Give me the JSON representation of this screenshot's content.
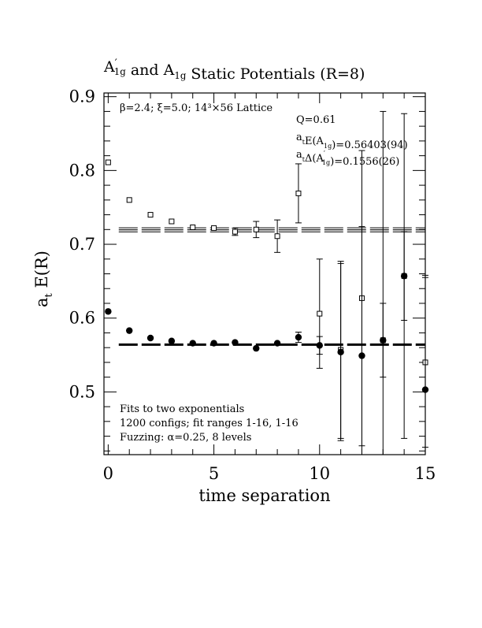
{
  "chart_data": {
    "type": "scatter",
    "title": {
      "parts": [
        {
          "t": "A",
          "sup": "′",
          "sub": "1g"
        },
        {
          "t": " and "
        },
        {
          "t": "A",
          "sub": "1g"
        },
        {
          "t": " Static Potentials (R=8)"
        }
      ]
    },
    "xlabel": "time separation",
    "ylabel": {
      "main": "a",
      "sub": "t",
      "rest": " E(R)"
    },
    "xlim": [
      -0.2,
      15
    ],
    "ylim": [
      0.415,
      0.905
    ],
    "x_major_ticks": [
      0,
      5,
      10,
      15
    ],
    "y_major_ticks": [
      0.5,
      0.6,
      0.7,
      0.8,
      0.9
    ],
    "x_tick_labels": [
      "0",
      "5",
      "10",
      "15"
    ],
    "y_tick_labels": [
      "0.5",
      "0.6",
      "0.7",
      "0.8",
      "0.9"
    ],
    "annotations_top_left": "β=2.4; ξ=5.0; 14³×56 Lattice",
    "annotations_top_right": [
      {
        "parts": [
          {
            "t": "Q=0.61"
          }
        ]
      },
      {
        "parts": [
          {
            "t": "a",
            "sub": "t"
          },
          {
            "t": "E(A"
          },
          {
            "t": "",
            "sub": "1g"
          },
          {
            "t": ")=0.56403(94)"
          }
        ]
      },
      {
        "parts": [
          {
            "t": "a",
            "sub": "t"
          },
          {
            "t": "Δ(A"
          },
          {
            "t": "",
            "sup": "′",
            "sub": "1g"
          },
          {
            "t": ")=0.1556(26)"
          }
        ]
      }
    ],
    "annotations_bottom_left": [
      "Fits to two exponentials",
      "1200 configs; fit ranges 1-16, 1-16",
      "Fuzzing: α=0.25, 8 levels"
    ],
    "series": [
      {
        "name": "A1g",
        "marker": "filled-circle",
        "points": [
          {
            "x": 0,
            "y": 0.609,
            "err": 0
          },
          {
            "x": 1,
            "y": 0.583,
            "err": 0
          },
          {
            "x": 2,
            "y": 0.573,
            "err": 0
          },
          {
            "x": 3,
            "y": 0.569,
            "err": 0
          },
          {
            "x": 4,
            "y": 0.566,
            "err": 0
          },
          {
            "x": 5,
            "y": 0.566,
            "err": 0
          },
          {
            "x": 6,
            "y": 0.567,
            "err": 0
          },
          {
            "x": 7,
            "y": 0.559,
            "err": 0
          },
          {
            "x": 8,
            "y": 0.566,
            "err": 0
          },
          {
            "x": 9,
            "y": 0.574,
            "err": 0.007
          },
          {
            "x": 10,
            "y": 0.563,
            "err": 0.012
          },
          {
            "x": 11,
            "y": 0.554,
            "err": 0.12
          },
          {
            "x": 12,
            "y": 0.549,
            "err": 0.175
          },
          {
            "x": 13,
            "y": 0.57,
            "err": 0.31
          },
          {
            "x": 14,
            "y": 0.657,
            "err": 0.22
          },
          {
            "x": 15,
            "y": 0.503,
            "err": 0.155
          }
        ],
        "fit": {
          "value": 0.56403,
          "band": [
            0.5631,
            0.565
          ]
        }
      },
      {
        "name": "A1g'",
        "marker": "open-square",
        "points": [
          {
            "x": 0,
            "y": 0.811,
            "err": 0
          },
          {
            "x": 1,
            "y": 0.76,
            "err": 0
          },
          {
            "x": 2,
            "y": 0.74,
            "err": 0
          },
          {
            "x": 3,
            "y": 0.731,
            "err": 0
          },
          {
            "x": 4,
            "y": 0.723,
            "err": 0
          },
          {
            "x": 5,
            "y": 0.722,
            "err": 0
          },
          {
            "x": 6,
            "y": 0.717,
            "err": 0.005
          },
          {
            "x": 7,
            "y": 0.72,
            "err": 0.011
          },
          {
            "x": 8,
            "y": 0.711,
            "err": 0.022
          },
          {
            "x": 9,
            "y": 0.769,
            "err": 0.04
          },
          {
            "x": 10,
            "y": 0.606,
            "err": 0.074
          },
          {
            "x": 11,
            "y": 0.557,
            "err": 0.12
          },
          {
            "x": 12,
            "y": 0.627,
            "err": 0.2
          },
          {
            "x": 13,
            "y": 0.57,
            "err": 0.05
          },
          {
            "x": 14,
            "y": 0.657,
            "err": 0.06
          },
          {
            "x": 15,
            "y": 0.54,
            "err": 0.115
          }
        ],
        "fit": {
          "value": 0.7196,
          "band": [
            0.7169,
            0.7223
          ]
        }
      }
    ]
  }
}
